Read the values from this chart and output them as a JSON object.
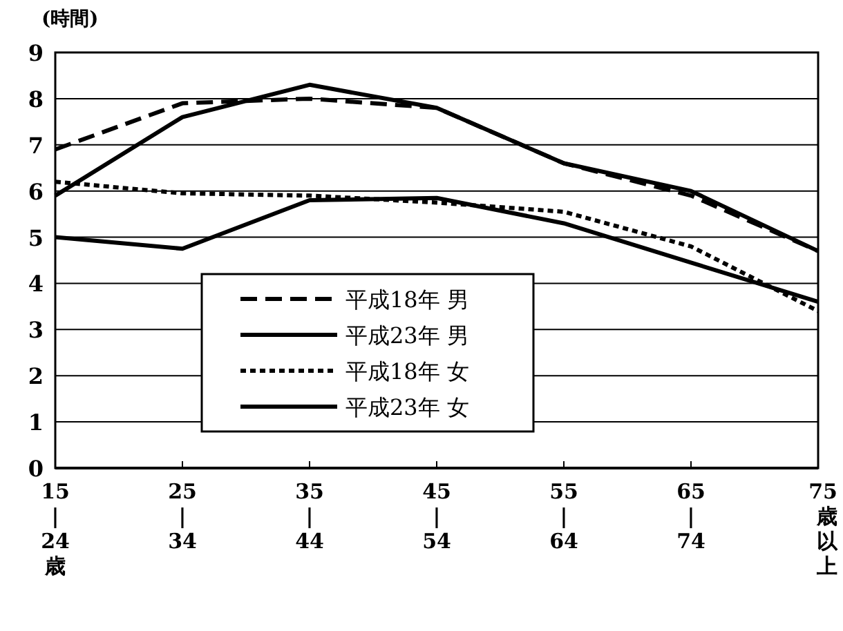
{
  "chart_data": {
    "type": "line",
    "ylabel": "(時間)",
    "categories": [
      "15\n|\n24\n歳",
      "25\n|\n34",
      "35\n|\n44",
      "45\n|\n54",
      "55\n|\n64",
      "65\n|\n74",
      "75\n歳以上"
    ],
    "ylim": [
      0,
      9
    ],
    "yticks": [
      0,
      1,
      2,
      3,
      4,
      5,
      6,
      7,
      8,
      9
    ],
    "grid": "y",
    "legend": "center",
    "marker": "none",
    "series": [
      {
        "name": "平成18年 男",
        "color": "#000000",
        "line_style": "dashed",
        "values": [
          6.9,
          7.9,
          8.0,
          7.8,
          6.6,
          5.9,
          4.7
        ]
      },
      {
        "name": "平成23年 男",
        "color": "#000000",
        "line_style": "solid",
        "values": [
          5.9,
          7.6,
          8.3,
          7.8,
          6.6,
          6.0,
          4.7
        ]
      },
      {
        "name": "平成18年 女",
        "color": "#000000",
        "line_style": "dotted",
        "values": [
          6.2,
          5.95,
          5.9,
          5.75,
          5.55,
          4.8,
          3.4
        ]
      },
      {
        "name": "平成23年 女",
        "color": "#000000",
        "line_style": "solid",
        "values": [
          5.0,
          4.75,
          5.8,
          5.85,
          5.3,
          4.45,
          3.6
        ]
      }
    ]
  }
}
